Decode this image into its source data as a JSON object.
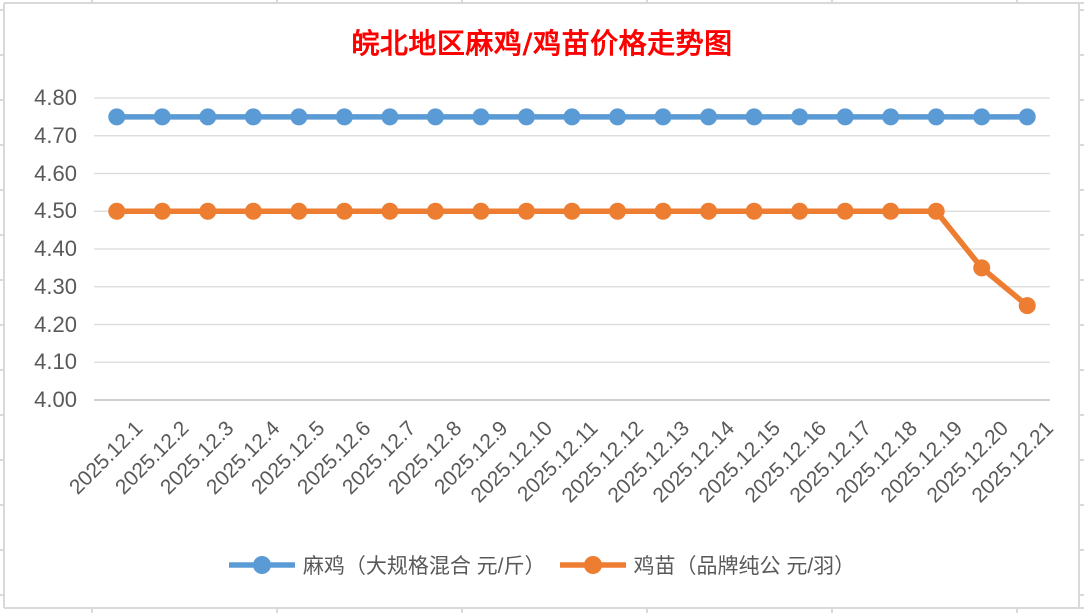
{
  "sheet": {
    "background": "#FFFFFF",
    "gridline_color": "#D9D9D9"
  },
  "chart_data": {
    "type": "line",
    "title": "皖北地区麻鸡/鸡苗价格走势图",
    "title_color": "#FF0000",
    "categories": [
      "2025.12.1",
      "2025.12.2",
      "2025.12.3",
      "2025.12.4",
      "2025.12.5",
      "2025.12.6",
      "2025.12.7",
      "2025.12.8",
      "2025.12.9",
      "2025.12.10",
      "2025.12.11",
      "2025.12.12",
      "2025.12.13",
      "2025.12.14",
      "2025.12.15",
      "2025.12.16",
      "2025.12.17",
      "2025.12.18",
      "2025.12.19",
      "2025.12.20",
      "2025.12.21"
    ],
    "series": [
      {
        "name": "麻鸡（大规格混合 元/斤）",
        "color": "#5B9BD5",
        "values": [
          4.75,
          4.75,
          4.75,
          4.75,
          4.75,
          4.75,
          4.75,
          4.75,
          4.75,
          4.75,
          4.75,
          4.75,
          4.75,
          4.75,
          4.75,
          4.75,
          4.75,
          4.75,
          4.75,
          4.75,
          4.75
        ]
      },
      {
        "name": "鸡苗（品牌纯公 元/羽）",
        "color": "#ED7D31",
        "values": [
          4.5,
          4.5,
          4.5,
          4.5,
          4.5,
          4.5,
          4.5,
          4.5,
          4.5,
          4.5,
          4.5,
          4.5,
          4.5,
          4.5,
          4.5,
          4.5,
          4.5,
          4.5,
          4.5,
          4.35,
          4.25
        ]
      }
    ],
    "y_axis": {
      "min": 4.0,
      "max": 4.8,
      "tick_step": 0.1,
      "tick_labels": [
        "4.00",
        "4.10",
        "4.20",
        "4.30",
        "4.40",
        "4.50",
        "4.60",
        "4.70",
        "4.80"
      ]
    },
    "grid": true,
    "gridline_color": "#D9D9D9",
    "axis_line_color": "#BFBFBF",
    "axis_text_color": "#595959",
    "legend_position": "bottom",
    "marker": "circle"
  }
}
